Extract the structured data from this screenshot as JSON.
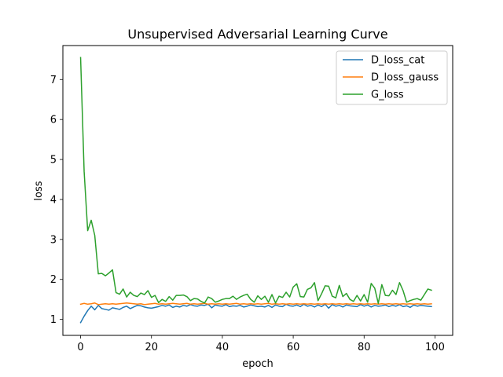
{
  "chart_data": {
    "type": "line",
    "title": "Unsupervised Adversarial Learning Curve",
    "xlabel": "epoch",
    "ylabel": "loss",
    "xlim": [
      -5,
      105
    ],
    "ylim": [
      0.6,
      7.85
    ],
    "xticks": [
      0,
      20,
      40,
      60,
      80,
      100
    ],
    "yticks": [
      1,
      2,
      3,
      4,
      5,
      6,
      7
    ],
    "grid": false,
    "legend_position": "top-right",
    "x": [
      0,
      1,
      2,
      3,
      4,
      5,
      6,
      7,
      8,
      9,
      10,
      11,
      12,
      13,
      14,
      15,
      16,
      17,
      18,
      19,
      20,
      21,
      22,
      23,
      24,
      25,
      26,
      27,
      28,
      29,
      30,
      31,
      32,
      33,
      34,
      35,
      36,
      37,
      38,
      39,
      40,
      41,
      42,
      43,
      44,
      45,
      46,
      47,
      48,
      49,
      50,
      51,
      52,
      53,
      54,
      55,
      56,
      57,
      58,
      59,
      60,
      61,
      62,
      63,
      64,
      65,
      66,
      67,
      68,
      69,
      70,
      71,
      72,
      73,
      74,
      75,
      76,
      77,
      78,
      79,
      80,
      81,
      82,
      83,
      84,
      85,
      86,
      87,
      88,
      89,
      90,
      91,
      92,
      93,
      94,
      95,
      96,
      97,
      98,
      99
    ],
    "series": [
      {
        "name": "D_loss_cat",
        "color": "#1f77b4",
        "values": [
          0.92,
          1.08,
          1.22,
          1.33,
          1.24,
          1.35,
          1.27,
          1.25,
          1.23,
          1.29,
          1.27,
          1.25,
          1.3,
          1.33,
          1.27,
          1.31,
          1.35,
          1.34,
          1.31,
          1.29,
          1.28,
          1.3,
          1.32,
          1.35,
          1.33,
          1.36,
          1.3,
          1.33,
          1.31,
          1.35,
          1.33,
          1.37,
          1.34,
          1.33,
          1.36,
          1.35,
          1.38,
          1.29,
          1.36,
          1.34,
          1.33,
          1.37,
          1.32,
          1.34,
          1.33,
          1.35,
          1.31,
          1.33,
          1.36,
          1.34,
          1.32,
          1.33,
          1.31,
          1.35,
          1.3,
          1.36,
          1.33,
          1.32,
          1.38,
          1.34,
          1.33,
          1.36,
          1.32,
          1.38,
          1.33,
          1.35,
          1.31,
          1.36,
          1.32,
          1.38,
          1.28,
          1.37,
          1.33,
          1.35,
          1.31,
          1.36,
          1.34,
          1.33,
          1.32,
          1.37,
          1.33,
          1.36,
          1.31,
          1.35,
          1.33,
          1.34,
          1.36,
          1.32,
          1.35,
          1.33,
          1.37,
          1.32,
          1.34,
          1.3,
          1.36,
          1.33,
          1.35,
          1.34,
          1.33,
          1.32
        ]
      },
      {
        "name": "D_loss_gauss",
        "color": "#ff7f0e",
        "values": [
          1.38,
          1.4,
          1.38,
          1.39,
          1.41,
          1.37,
          1.38,
          1.39,
          1.38,
          1.39,
          1.38,
          1.39,
          1.4,
          1.41,
          1.4,
          1.39,
          1.38,
          1.39,
          1.37,
          1.38,
          1.39,
          1.4,
          1.38,
          1.39,
          1.38,
          1.39,
          1.4,
          1.39,
          1.38,
          1.39,
          1.4,
          1.38,
          1.39,
          1.38,
          1.39,
          1.4,
          1.38,
          1.39,
          1.38,
          1.39,
          1.38,
          1.39,
          1.38,
          1.39,
          1.4,
          1.38,
          1.39,
          1.38,
          1.39,
          1.38,
          1.39,
          1.38,
          1.39,
          1.4,
          1.38,
          1.39,
          1.38,
          1.39,
          1.38,
          1.39,
          1.38,
          1.39,
          1.38,
          1.39,
          1.38,
          1.39,
          1.38,
          1.39,
          1.38,
          1.39,
          1.38,
          1.39,
          1.38,
          1.39,
          1.38,
          1.39,
          1.38,
          1.39,
          1.38,
          1.39,
          1.38,
          1.39,
          1.38,
          1.39,
          1.38,
          1.39,
          1.38,
          1.39,
          1.38,
          1.39,
          1.38,
          1.39,
          1.38,
          1.39,
          1.38,
          1.39,
          1.38,
          1.39,
          1.38,
          1.39
        ]
      },
      {
        "name": "G_loss",
        "color": "#2ca02c",
        "values": [
          7.55,
          4.7,
          3.22,
          3.48,
          3.1,
          2.14,
          2.15,
          2.09,
          2.16,
          2.24,
          1.67,
          1.63,
          1.76,
          1.56,
          1.68,
          1.6,
          1.57,
          1.66,
          1.62,
          1.72,
          1.55,
          1.6,
          1.42,
          1.5,
          1.45,
          1.57,
          1.48,
          1.6,
          1.6,
          1.61,
          1.57,
          1.47,
          1.52,
          1.51,
          1.45,
          1.41,
          1.56,
          1.52,
          1.43,
          1.46,
          1.5,
          1.52,
          1.52,
          1.58,
          1.5,
          1.56,
          1.6,
          1.63,
          1.5,
          1.43,
          1.59,
          1.5,
          1.58,
          1.43,
          1.62,
          1.41,
          1.58,
          1.55,
          1.68,
          1.56,
          1.81,
          1.89,
          1.57,
          1.56,
          1.75,
          1.79,
          1.92,
          1.47,
          1.64,
          1.84,
          1.83,
          1.58,
          1.54,
          1.85,
          1.57,
          1.65,
          1.5,
          1.45,
          1.6,
          1.46,
          1.62,
          1.43,
          1.9,
          1.78,
          1.4,
          1.87,
          1.6,
          1.59,
          1.73,
          1.62,
          1.92,
          1.72,
          1.43,
          1.47,
          1.5,
          1.52,
          1.48,
          1.62,
          1.76,
          1.73
        ]
      }
    ]
  }
}
